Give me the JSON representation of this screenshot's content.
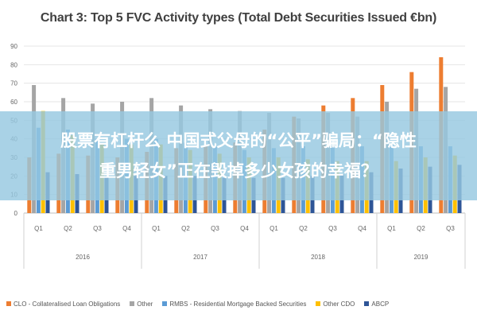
{
  "overlay": {
    "line1": "股票有杠杆么 中国式父母的“公平”骗局：“隐性",
    "line2": "重男轻女”正在毁掉多少女孩的幸福？"
  },
  "chart_data": {
    "type": "bar",
    "title": "Chart 3: Top 5 FVC Activity types (Total Debt Securities Issued €bn)",
    "ylim": [
      0,
      90
    ],
    "yticks": [
      0,
      10,
      20,
      30,
      40,
      50,
      60,
      70,
      80,
      90
    ],
    "grid": true,
    "legend_position": "bottom",
    "categories": [
      "Q1",
      "Q2",
      "Q3",
      "Q4",
      "Q1",
      "Q2",
      "Q3",
      "Q4",
      "Q1",
      "Q2",
      "Q3",
      "Q4",
      "Q1",
      "Q2",
      "Q3"
    ],
    "groups": [
      {
        "label": "2016",
        "span": 4
      },
      {
        "label": "2017",
        "span": 4
      },
      {
        "label": "2018",
        "span": 4
      },
      {
        "label": "2019",
        "span": 3
      }
    ],
    "series": [
      {
        "name": "CLO - Collateralised Loan Obligations",
        "color": "#ED7D31",
        "values": [
          30,
          32,
          31,
          30,
          33,
          35,
          36,
          38,
          45,
          52,
          58,
          62,
          69,
          76,
          84
        ]
      },
      {
        "name": "Other",
        "color": "#A5A5A5",
        "values": [
          69,
          62,
          59,
          60,
          62,
          58,
          56,
          55,
          54,
          51,
          54,
          52,
          60,
          67,
          68
        ]
      },
      {
        "name": "RMBS - Residential Mortgage Backed Securities",
        "color": "#5B9BD5",
        "values": [
          46,
          45,
          40,
          40,
          40,
          38,
          36,
          34,
          35,
          36,
          36,
          36,
          36,
          36,
          36
        ]
      },
      {
        "name": "Other CDO",
        "color": "#FFC000",
        "values": [
          55,
          42,
          37,
          37,
          37,
          34,
          32,
          30,
          30,
          29,
          28,
          28,
          28,
          30,
          31
        ]
      },
      {
        "name": "ABCP",
        "color": "#2E5597",
        "values": [
          22,
          21,
          20,
          20,
          20,
          20,
          19,
          19,
          19,
          20,
          21,
          22,
          24,
          25,
          26
        ]
      }
    ]
  }
}
